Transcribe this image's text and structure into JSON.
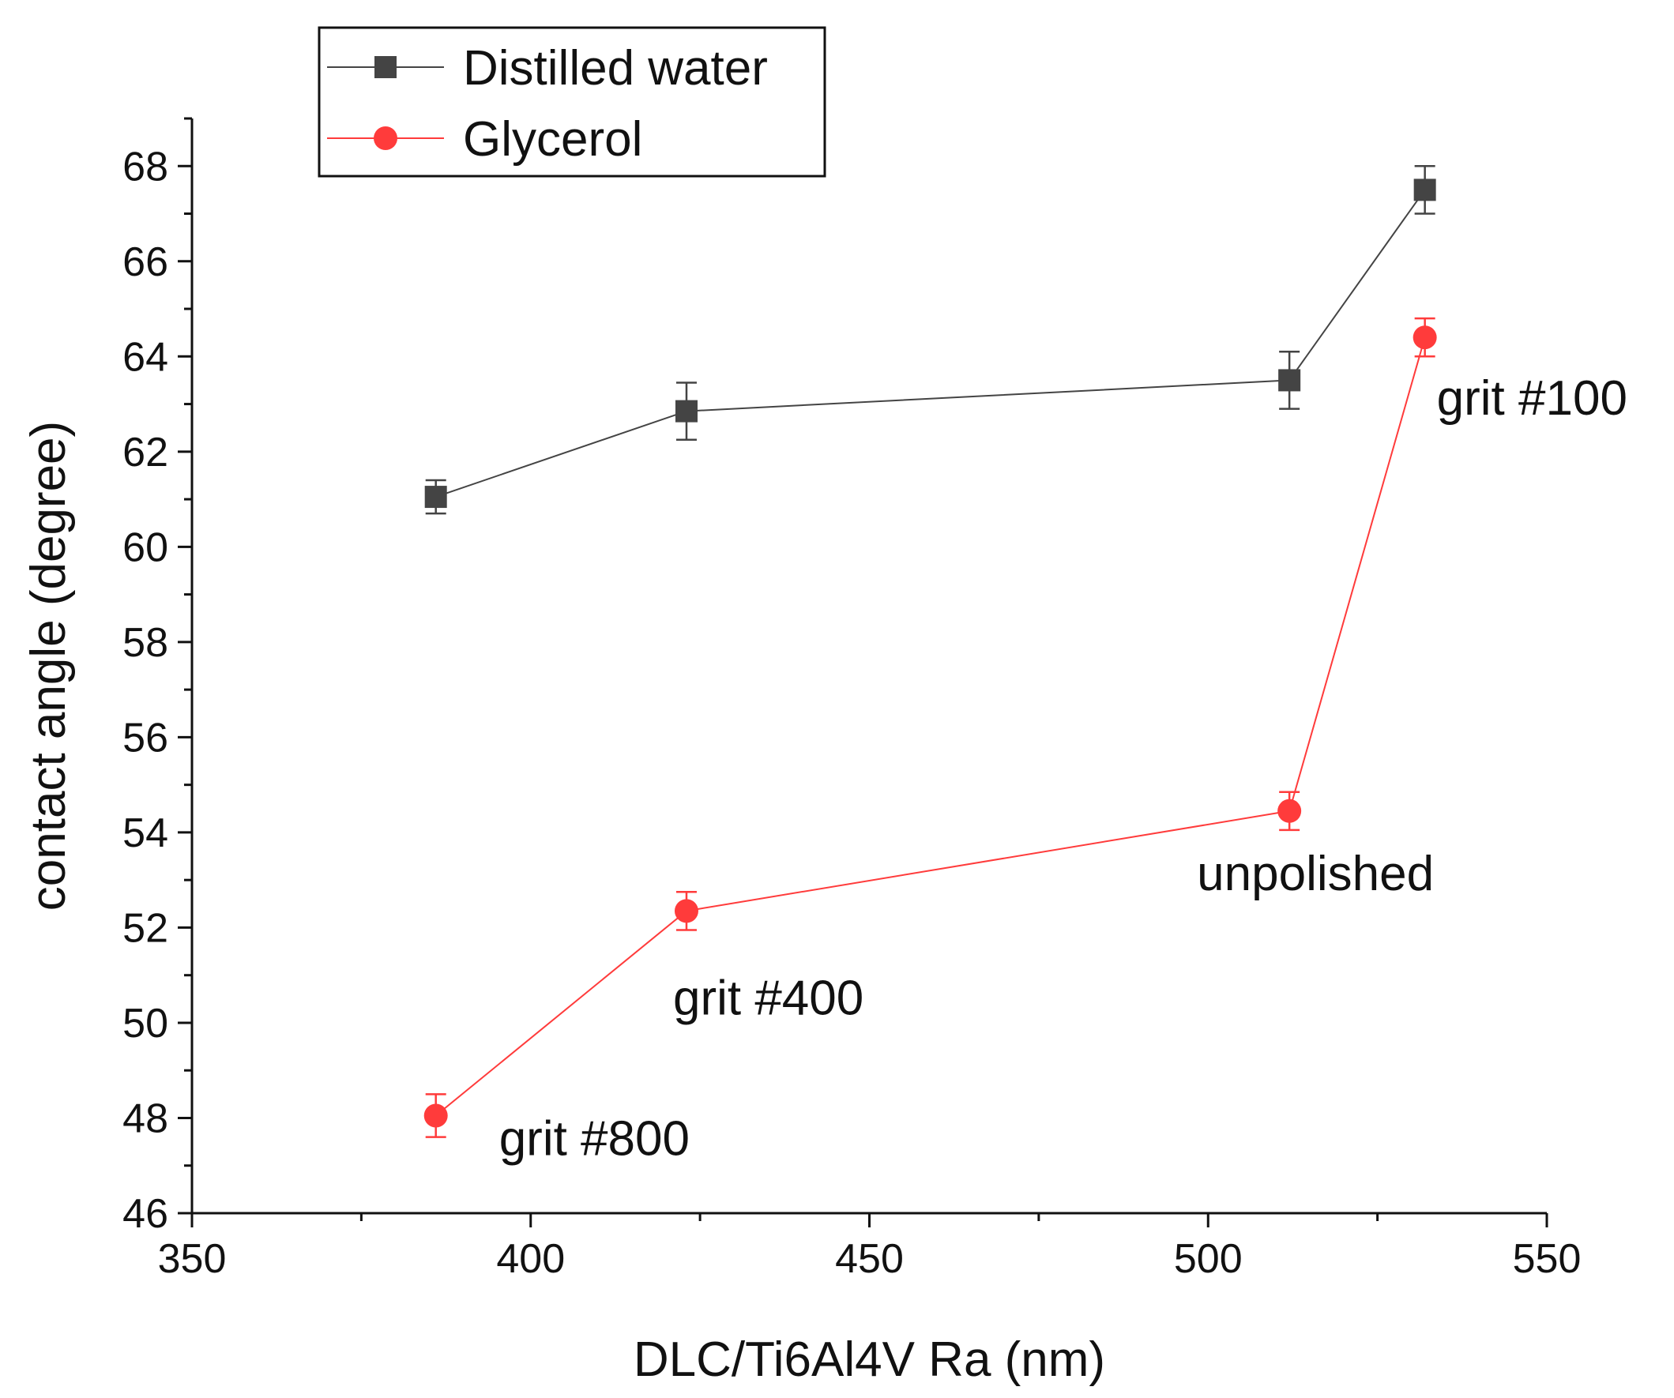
{
  "chart_data": {
    "type": "line",
    "title": "",
    "xlabel": "DLC/Ti6Al4V Ra (nm)",
    "ylabel": "contact angle (degree)",
    "xlim": [
      350,
      550
    ],
    "ylim": [
      46,
      69
    ],
    "xticks": [
      350,
      400,
      450,
      500,
      550
    ],
    "yticks": [
      46,
      48,
      50,
      52,
      54,
      56,
      58,
      60,
      62,
      64,
      66,
      68
    ],
    "legend_position": "top-left",
    "series": [
      {
        "name": "Distilled water",
        "color": "#444444",
        "marker": "square",
        "x": [
          386,
          423,
          512,
          532
        ],
        "y": [
          61.05,
          62.85,
          63.5,
          67.5
        ],
        "error": [
          0.35,
          0.6,
          0.6,
          0.5
        ]
      },
      {
        "name": "Glycerol",
        "color": "#ff3b3b",
        "marker": "circle",
        "x": [
          386,
          423,
          512,
          532
        ],
        "y": [
          48.05,
          52.35,
          54.45,
          64.4
        ],
        "error": [
          0.45,
          0.4,
          0.4,
          0.4
        ]
      }
    ],
    "annotations": [
      {
        "text": "grit #800",
        "x": 386,
        "y": 48.05
      },
      {
        "text": "grit #400",
        "x": 423,
        "y": 52.35
      },
      {
        "text": "unpolished",
        "x": 512,
        "y": 54.45
      },
      {
        "text": "grit #100",
        "x": 532,
        "y": 64.4
      }
    ]
  }
}
